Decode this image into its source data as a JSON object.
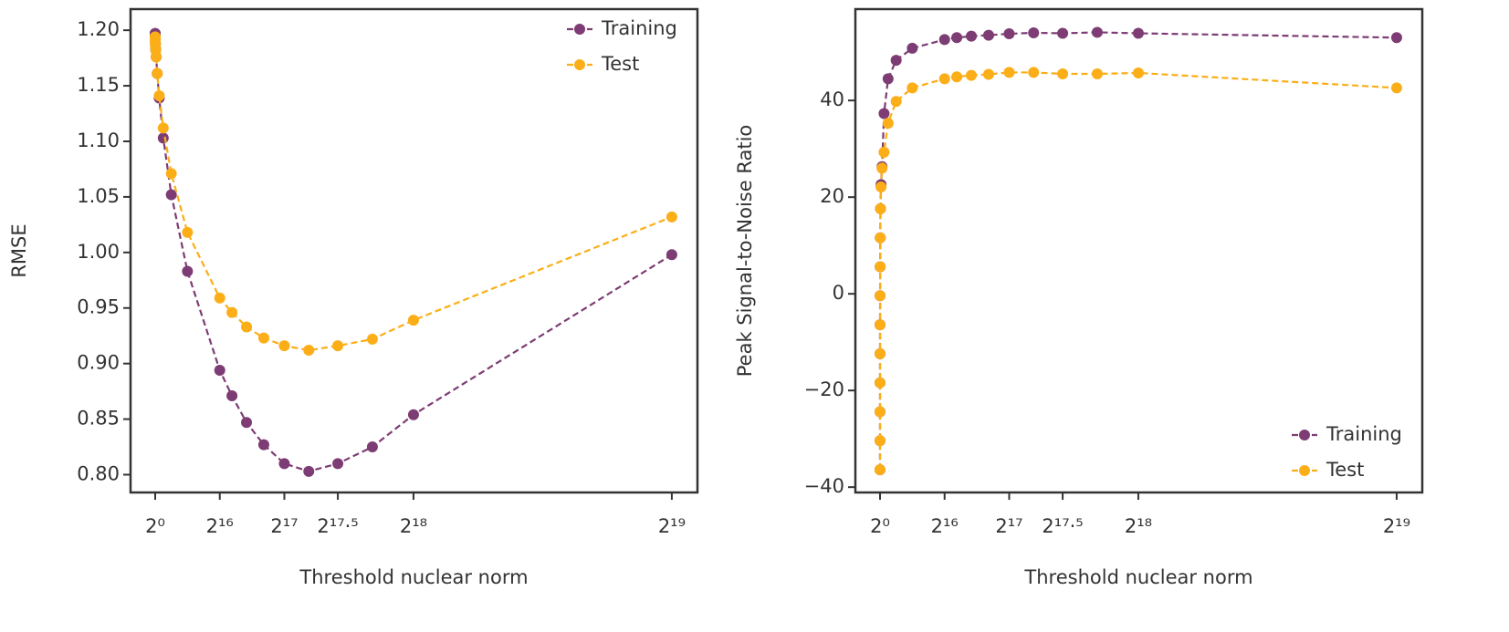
{
  "chart_data": [
    {
      "type": "line",
      "xlabel": "Threshold nuclear norm",
      "ylabel": "RMSE",
      "legend": "upper right",
      "x": [
        1,
        2,
        4,
        8,
        16,
        32,
        64,
        128,
        256,
        512,
        1024,
        2048,
        4096,
        8192,
        16384,
        32768,
        65536,
        77936,
        92682,
        110218,
        131072,
        155872,
        185364,
        220436,
        262144,
        524288
      ],
      "series": [
        {
          "name": "Training",
          "color": "#7d3c74",
          "values": [
            1.197,
            1.197,
            1.197,
            1.196,
            1.196,
            1.195,
            1.194,
            1.192,
            1.188,
            1.183,
            1.176,
            1.161,
            1.139,
            1.103,
            1.052,
            0.983,
            0.894,
            0.871,
            0.847,
            0.827,
            0.81,
            0.803,
            0.81,
            0.825,
            0.854,
            0.998
          ]
        },
        {
          "name": "Test",
          "color": "#fbae17",
          "values": [
            1.194,
            1.194,
            1.194,
            1.193,
            1.193,
            1.192,
            1.191,
            1.189,
            1.186,
            1.182,
            1.176,
            1.161,
            1.141,
            1.112,
            1.071,
            1.018,
            0.959,
            0.946,
            0.933,
            0.923,
            0.916,
            0.912,
            0.916,
            0.922,
            0.939,
            1.032
          ]
        }
      ],
      "xlim": [
        -25000,
        550300
      ],
      "ylim": [
        0.784,
        1.219
      ],
      "xticks": [
        {
          "value": 1,
          "label": "2⁰"
        },
        {
          "value": 65536,
          "label": "2¹⁶"
        },
        {
          "value": 131072,
          "label": "2¹⁷"
        },
        {
          "value": 185364,
          "label": "2¹⁷·⁵"
        },
        {
          "value": 262144,
          "label": "2¹⁸"
        },
        {
          "value": 524288,
          "label": "2¹⁹"
        }
      ],
      "yticks": [
        {
          "value": 0.8,
          "label": "0.80"
        },
        {
          "value": 0.85,
          "label": "0.85"
        },
        {
          "value": 0.9,
          "label": "0.90"
        },
        {
          "value": 0.95,
          "label": "0.95"
        },
        {
          "value": 1.0,
          "label": "1.00"
        },
        {
          "value": 1.05,
          "label": "1.05"
        },
        {
          "value": 1.1,
          "label": "1.10"
        },
        {
          "value": 1.15,
          "label": "1.15"
        },
        {
          "value": 1.2,
          "label": "1.20"
        }
      ]
    },
    {
      "type": "line",
      "xlabel": "Threshold nuclear norm",
      "ylabel": "Peak Signal-to-Noise Ratio",
      "legend": "lower right",
      "x": [
        1,
        2,
        4,
        8,
        16,
        32,
        64,
        128,
        256,
        512,
        1024,
        2048,
        4096,
        8192,
        16384,
        32768,
        65536,
        77936,
        92682,
        110218,
        131072,
        155872,
        185364,
        220436,
        262144,
        524288
      ],
      "series": [
        {
          "name": "Training",
          "color": "#7d3c74",
          "values": [
            -36.4,
            -30.4,
            -24.4,
            -18.4,
            -12.4,
            -6.4,
            -0.4,
            5.6,
            11.6,
            17.6,
            22.6,
            26.3,
            37.3,
            44.5,
            48.3,
            50.8,
            52.6,
            53.0,
            53.3,
            53.5,
            53.8,
            54.0,
            53.9,
            54.1,
            53.9,
            53.0
          ]
        },
        {
          "name": "Test",
          "color": "#fbae17",
          "values": [
            -36.4,
            -30.4,
            -24.4,
            -18.4,
            -12.4,
            -6.4,
            -0.4,
            5.6,
            11.6,
            17.6,
            22.1,
            26.0,
            29.3,
            35.3,
            39.8,
            42.6,
            44.5,
            44.9,
            45.2,
            45.4,
            45.8,
            45.8,
            45.5,
            45.5,
            45.7,
            42.6
          ]
        }
      ],
      "xlim": [
        -25000,
        550300
      ],
      "ylim": [
        -41.1,
        58.9
      ],
      "xticks": [
        {
          "value": 1,
          "label": "2⁰"
        },
        {
          "value": 65536,
          "label": "2¹⁶"
        },
        {
          "value": 131072,
          "label": "2¹⁷"
        },
        {
          "value": 185364,
          "label": "2¹⁷·⁵"
        },
        {
          "value": 262144,
          "label": "2¹⁸"
        },
        {
          "value": 524288,
          "label": "2¹⁹"
        }
      ],
      "yticks": [
        {
          "value": -40,
          "label": "−40"
        },
        {
          "value": -20,
          "label": "−20"
        },
        0,
        20,
        40
      ]
    }
  ]
}
